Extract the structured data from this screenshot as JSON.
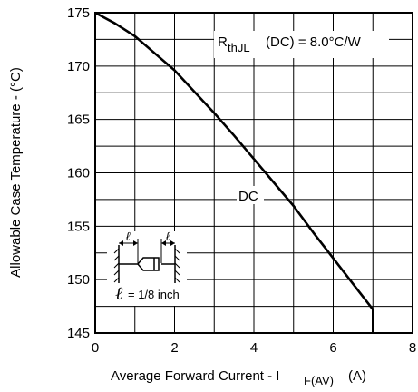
{
  "chart_data": {
    "type": "line",
    "xlabel_main": "Average Forward Current - I",
    "xlabel_sub": "F(AV)",
    "xlabel_unit": "(A)",
    "ylabel": "Allowable Case Temperature - (°C)",
    "xlim": [
      0,
      8
    ],
    "ylim": [
      145,
      175
    ],
    "x_ticks": [
      "0",
      "2",
      "4",
      "6",
      "8"
    ],
    "y_ticks": [
      "145",
      "150",
      "155",
      "160",
      "165",
      "170",
      "175"
    ],
    "grid": true,
    "series": [
      {
        "name": "DC",
        "x": [
          0,
          0.5,
          1.0,
          1.5,
          2.0,
          2.5,
          3.0,
          3.5,
          4.0,
          4.5,
          5.0,
          5.5,
          6.0,
          6.5,
          7.0,
          7.0
        ],
        "y": [
          175,
          174.0,
          172.8,
          171.2,
          169.6,
          167.6,
          165.6,
          163.5,
          161.3,
          159.1,
          156.9,
          154.4,
          152.0,
          149.6,
          147.2,
          145
        ]
      }
    ],
    "annotation_rth_main": "R",
    "annotation_rth_sub": "thJL",
    "annotation_rth_rest": "(DC) = 8.0°C/W",
    "inset_label_l": "ℓ",
    "inset_text": "= 1/8 inch"
  }
}
